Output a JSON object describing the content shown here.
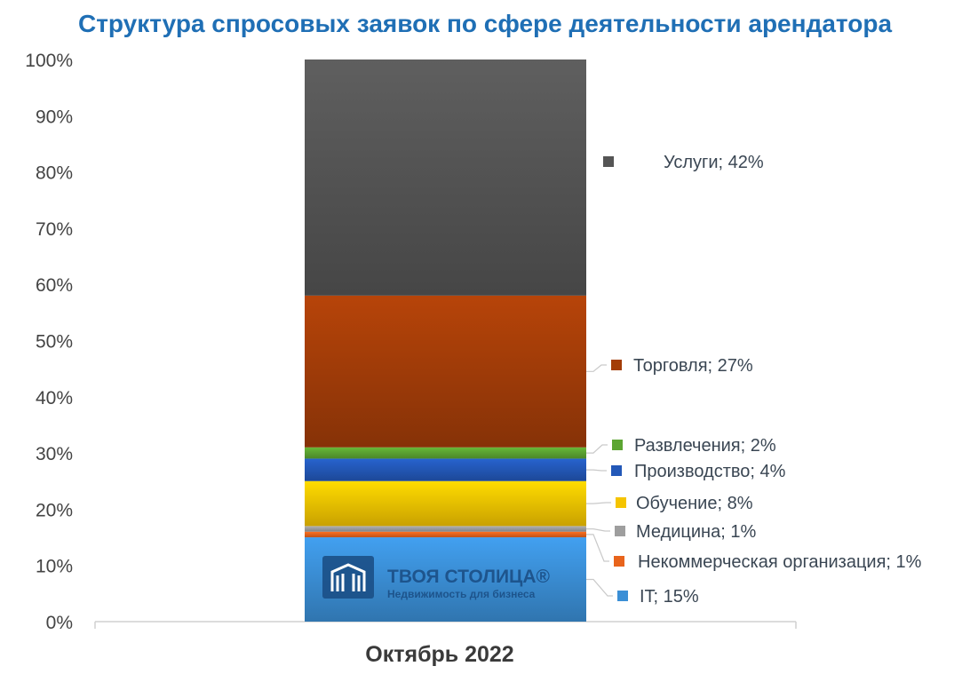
{
  "chart_data": {
    "type": "bar",
    "stacked": true,
    "normalized": true,
    "title": "Структура спросовых заявок по сфере деятельности арендатора",
    "categories": [
      "Октябрь 2022"
    ],
    "ylim": [
      0,
      100
    ],
    "yticks": [
      "0%",
      "10%",
      "20%",
      "30%",
      "40%",
      "50%",
      "60%",
      "70%",
      "80%",
      "90%",
      "100%"
    ],
    "series": [
      {
        "name": "IT",
        "values": [
          15
        ],
        "color": "#3b8fd6",
        "label": "IT; 15%"
      },
      {
        "name": "Некоммерческая организация",
        "values": [
          1
        ],
        "color": "#e8641c",
        "label": "Некоммерческая организация; 1%"
      },
      {
        "name": "Медицина",
        "values": [
          1
        ],
        "color": "#9e9e9e",
        "label": "Медицина; 1%"
      },
      {
        "name": "Обучение",
        "values": [
          8
        ],
        "color": "#f5c400",
        "label": "Обучение; 8%"
      },
      {
        "name": "Производство",
        "values": [
          4
        ],
        "color": "#2358b8",
        "label": "Производство; 4%"
      },
      {
        "name": "Развлечения",
        "values": [
          2
        ],
        "color": "#5ca532",
        "label": "Развлечения; 2%"
      },
      {
        "name": "Торговля",
        "values": [
          27
        ],
        "color": "#a33d08",
        "label": "Торговля; 27%"
      },
      {
        "name": "Услуги",
        "values": [
          42
        ],
        "color": "#555555",
        "label": "Услуги; 42%"
      }
    ],
    "legend": "right",
    "grid": false
  },
  "watermark": {
    "brand": "ТВОЯ СТОЛИЦА®",
    "tagline": "Недвижимость для бизнеса"
  },
  "colors": {
    "title": "#1f6fb5",
    "axis_text": "#444444",
    "label_text": "#3a4653",
    "axis_line": "#d0d0d0"
  }
}
